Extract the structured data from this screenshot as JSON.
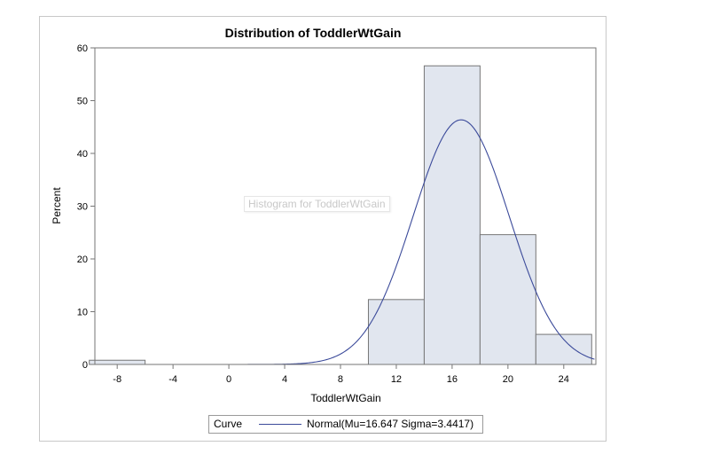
{
  "chart_data": {
    "type": "bar",
    "title": "Distribution of ToddlerWtGain",
    "xlabel": "ToddlerWtGain",
    "ylabel": "Percent",
    "xlim": [
      -9.6,
      26.3
    ],
    "ylim": [
      0,
      60
    ],
    "xticks": [
      -8,
      -4,
      0,
      4,
      8,
      12,
      16,
      20,
      24
    ],
    "yticks": [
      0,
      10,
      20,
      30,
      40,
      50,
      60
    ],
    "bins": [
      {
        "from": -10,
        "to": -6,
        "value": 0.8
      },
      {
        "from": -6,
        "to": -2,
        "value": 0
      },
      {
        "from": -2,
        "to": 2,
        "value": 0
      },
      {
        "from": 2,
        "to": 6,
        "value": 0
      },
      {
        "from": 6,
        "to": 10,
        "value": 0
      },
      {
        "from": 10,
        "to": 14,
        "value": 12.3
      },
      {
        "from": 14,
        "to": 18,
        "value": 56.6
      },
      {
        "from": 18,
        "to": 22,
        "value": 24.6
      },
      {
        "from": 22,
        "to": 26,
        "value": 5.7
      }
    ],
    "curve": {
      "type": "normal",
      "mu": 16.647,
      "sigma": 3.4417,
      "bin_width": 4
    },
    "tooltip": "Histogram for ToddlerWtGain",
    "legend": {
      "title": "Curve",
      "entry": "Normal(Mu=16.647 Sigma=3.4417)"
    },
    "colors": {
      "bar_fill": "#e1e6ef",
      "bar_stroke": "#767676",
      "curve": "#3b4a9a",
      "axis": "#767676"
    }
  }
}
